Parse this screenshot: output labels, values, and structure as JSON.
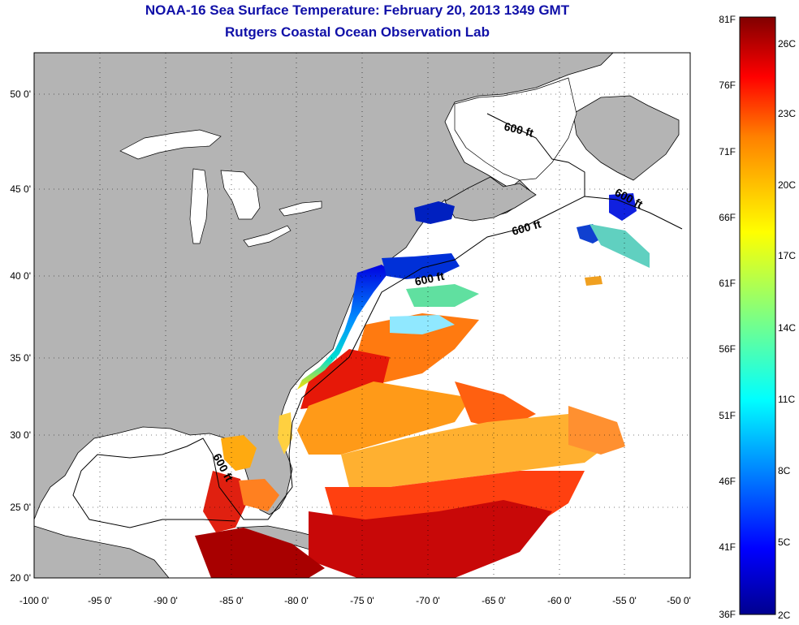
{
  "header": {
    "title_line1": "NOAA-16 Sea Surface Temperature:  February 20, 2013 1349 GMT",
    "title_line2": "Rutgers Coastal Ocean Observation Lab"
  },
  "map": {
    "lon_range": [
      -100,
      -50
    ],
    "lat_range": [
      20,
      52.5
    ],
    "lon_tick_labels": [
      "-100 0'",
      "-95 0'",
      "-90 0'",
      "-85 0'",
      "-80 0'",
      "-75 0'",
      "-70 0'",
      "-65 0'",
      "-60 0'",
      "-55 0'",
      "-50 0'"
    ],
    "lat_tick_labels": [
      "20 0'",
      "25 0'",
      "30 0'",
      "35 0'",
      "40 0'",
      "45 0'",
      "50 0'"
    ],
    "depth_contour_label": "600 ft",
    "grid": "dotted",
    "land_color": "#b4b4b4",
    "no_data_color": "#ffffff"
  },
  "colorbar": {
    "fahrenheit_labels": [
      "81F",
      "76F",
      "71F",
      "66F",
      "61F",
      "56F",
      "51F",
      "46F",
      "41F",
      "36F"
    ],
    "celsius_labels": [
      "26C",
      "23C",
      "20C",
      "17C",
      "14C",
      "11C",
      "8C",
      "5C",
      "2C"
    ],
    "colormap": "jet",
    "colors": [
      "#00008f",
      "#0000ff",
      "#0080ff",
      "#00ffff",
      "#80ff80",
      "#ffff00",
      "#ff8000",
      "#ff0000",
      "#800000"
    ]
  }
}
